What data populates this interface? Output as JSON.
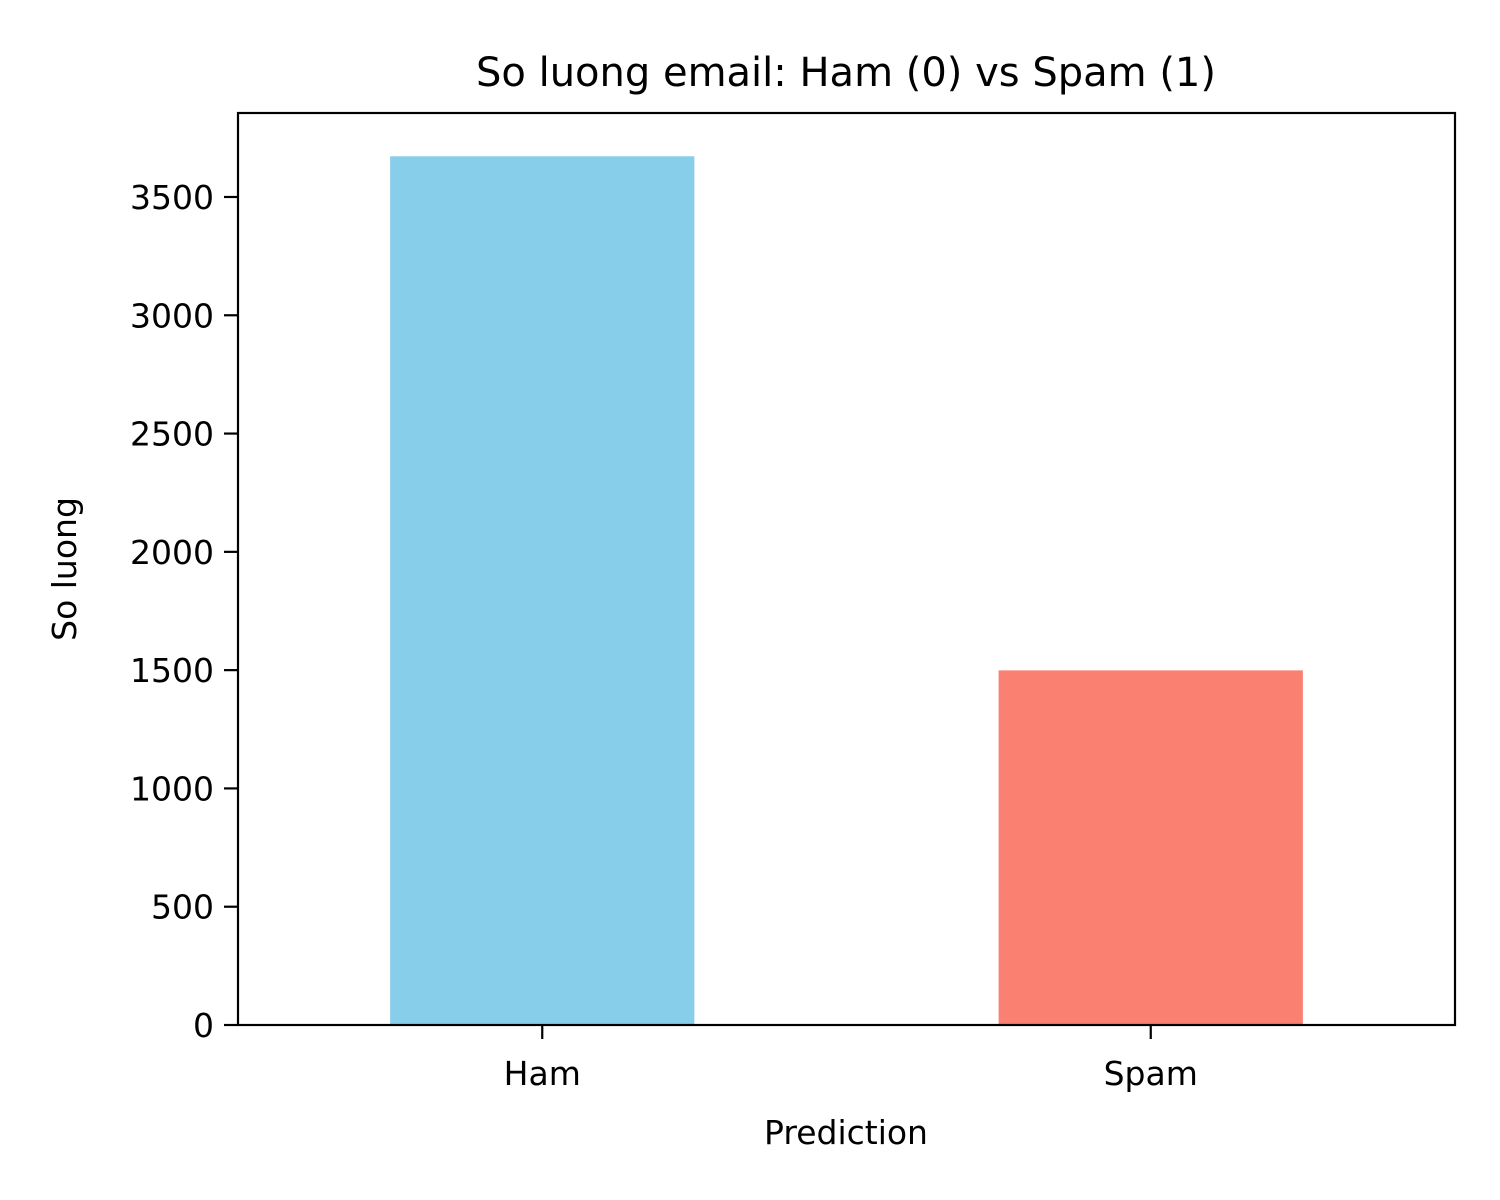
{
  "chart_data": {
    "type": "bar",
    "title": "So luong email: Ham (0) vs Spam (1)",
    "xlabel": "Prediction",
    "ylabel": "So luong",
    "categories": [
      "Ham",
      "Spam"
    ],
    "values": [
      3672,
      1499
    ],
    "colors": [
      "#87CEEB",
      "#FA8072"
    ],
    "ylim": [
      0,
      3855
    ],
    "yticks": [
      0,
      500,
      1000,
      1500,
      2000,
      2500,
      3000,
      3500
    ],
    "ytick_labels": [
      "0",
      "500",
      "1000",
      "1500",
      "2000",
      "2500",
      "3000",
      "3500"
    ],
    "grid": false,
    "legend": "none"
  }
}
